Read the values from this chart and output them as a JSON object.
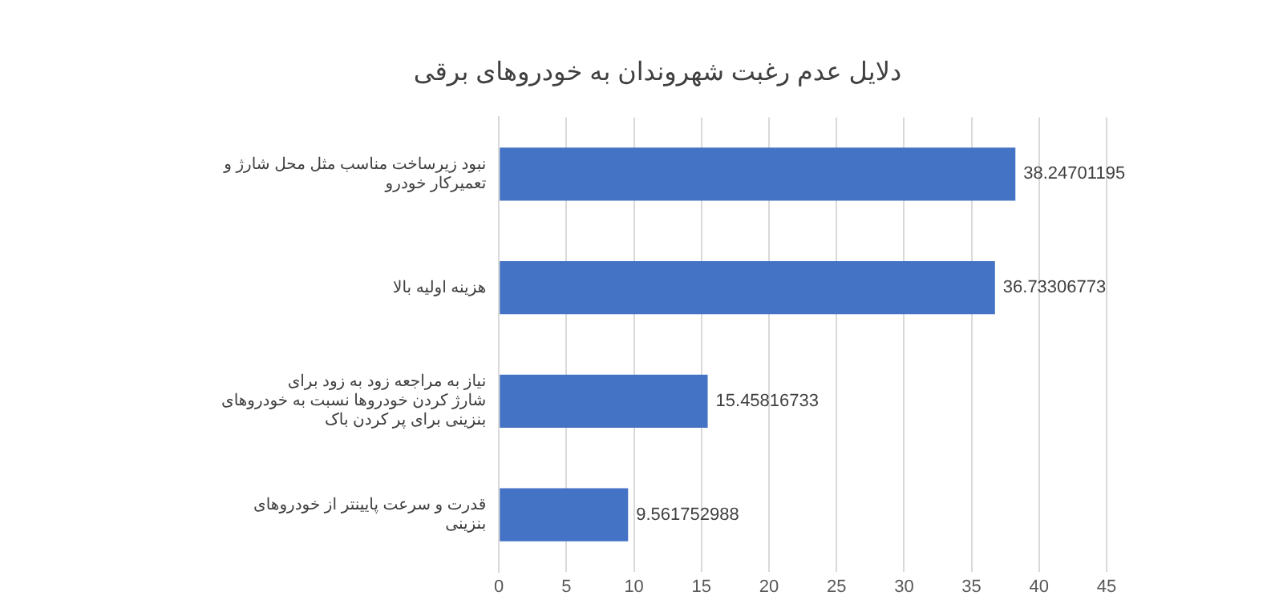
{
  "chart_data": {
    "type": "bar",
    "orientation": "horizontal",
    "title": "دلایل عدم رغبت شهروندان به خودروهای برقی",
    "categories": [
      "نبود زیرساخت مناسب مثل محل شارژ و تعمیرکار خودرو",
      "هزینه اولیه بالا",
      "نیاز به مراجعه زود به زود برای شارژ کردن خودروها نسبت به خودروهای بنزینی برای پر کردن باک",
      "قدرت و سرعت پایینتر از خودروهای بنزینی"
    ],
    "values": [
      38.24701195,
      36.73306773,
      15.45816733,
      9.561752988
    ],
    "color": "#4472c4",
    "data_labels": true,
    "xlim": [
      0,
      45
    ],
    "xticks": [
      0,
      5,
      10,
      15,
      20,
      25,
      30,
      35,
      40,
      45
    ],
    "grid": "x",
    "legend": false
  }
}
